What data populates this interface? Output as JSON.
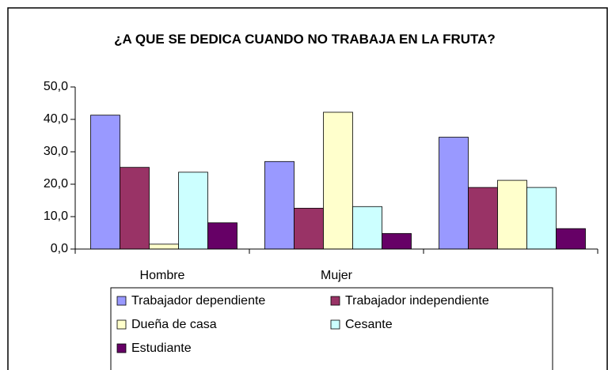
{
  "chart_data": {
    "type": "bar",
    "title": "¿A QUE SE DEDICA CUANDO NO TRABAJA EN LA FRUTA?",
    "categories": [
      "Hombre",
      "Mujer",
      null
    ],
    "series": [
      {
        "name": "Trabajador dependiente",
        "color": "#9999ff",
        "values": [
          41.3,
          27.0,
          34.5
        ]
      },
      {
        "name": "Trabajador independiente",
        "color": "#993366",
        "values": [
          25.2,
          12.6,
          19.0
        ]
      },
      {
        "name": "Dueña de casa",
        "color": "#ffffcc",
        "values": [
          1.5,
          42.2,
          21.2
        ]
      },
      {
        "name": "Cesante",
        "color": "#ccffff",
        "values": [
          23.7,
          13.1,
          19.0
        ]
      },
      {
        "name": "Estudiante",
        "color": "#660066",
        "values": [
          8.1,
          4.8,
          6.3
        ]
      }
    ],
    "ylim": [
      0,
      50
    ],
    "yticks": [
      {
        "value": 0,
        "label": "0,0"
      },
      {
        "value": 10,
        "label": "10,0"
      },
      {
        "value": 20,
        "label": "20,0"
      },
      {
        "value": 30,
        "label": "30,0"
      },
      {
        "value": 40,
        "label": "40,0"
      },
      {
        "value": 50,
        "label": "50,0"
      }
    ],
    "legend": "bottom"
  }
}
